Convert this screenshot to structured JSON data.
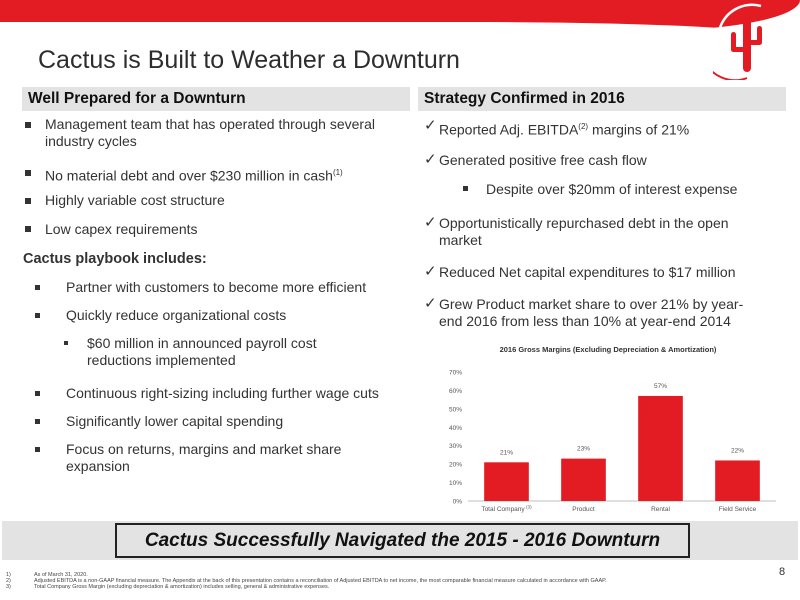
{
  "title": "Cactus is Built to Weather a Downturn",
  "left": {
    "heading": "Well Prepared for a Downturn",
    "bullets": [
      {
        "line1": "Management team that has operated through several",
        "line2": "industry cycles"
      },
      {
        "line1": "No material debt and over $230 million in cash",
        "sup": "(1)"
      },
      {
        "line1": "Highly variable cost structure"
      },
      {
        "line1": "Low capex requirements"
      }
    ],
    "playbook_label": "Cactus playbook includes:",
    "playbook": [
      {
        "line1": "Partner with customers to become more efficient"
      },
      {
        "line1": "Quickly reduce organizational costs"
      },
      {
        "line1": "Continuous right-sizing including further wage cuts"
      },
      {
        "line1": "Significantly lower capital spending"
      },
      {
        "line1": "Focus on returns, margins and market share",
        "line2": "expansion"
      }
    ],
    "sub_bullet": {
      "line1": "$60 million in announced payroll cost",
      "line2": "reductions implemented"
    }
  },
  "right": {
    "heading": "Strategy Confirmed in 2016",
    "items": [
      {
        "pre": "Reported Adj. EBITDA",
        "sup": "(2)",
        "post": " margins of 21%"
      },
      {
        "line1": "Generated positive free cash flow"
      },
      {
        "line1": "Opportunistically repurchased debt in the open",
        "line2": "market"
      },
      {
        "line1": "Reduced Net capital expenditures to $17 million"
      },
      {
        "line1": "Grew Product market share to over 21% by year-",
        "line2": "end 2016 from less than 10% at year-end 2014"
      }
    ],
    "sub_bullet": "Despite over $20mm of interest expense"
  },
  "chart_data": {
    "type": "bar",
    "title": "2016 Gross Margins (Excluding Depreciation & Amortization)",
    "categories": [
      "Total Company",
      "Product",
      "Rental",
      "Field Service"
    ],
    "category_superscripts": [
      "(3)",
      "",
      "",
      ""
    ],
    "values": [
      21,
      23,
      57,
      22
    ],
    "value_labels": [
      "21%",
      "23%",
      "57%",
      "22%"
    ],
    "yticks": [
      "0%",
      "10%",
      "20%",
      "30%",
      "40%",
      "50%",
      "60%",
      "70%"
    ],
    "ylim": [
      0,
      70
    ],
    "bar_color": "#e31b23",
    "grid": false
  },
  "banner": "Cactus Successfully Navigated the 2015 - 2016 Downturn",
  "footnotes": [
    {
      "num": "1)",
      "text": "As of March 31, 2020."
    },
    {
      "num": "2)",
      "text": "Adjusted EBITDA is a non-GAAP financial measure. The Appendix at the back of this presentation contains a reconciliation of Adjusted EBITDA to net income, the most comparable financial measure calculated in accordance with GAAP."
    },
    {
      "num": "3)",
      "text": "Total Company Gross Margin (excluding depreciation & amortization) includes selling, general & administrative expenses."
    }
  ],
  "page_number": "8",
  "colors": {
    "accent": "#e31b23",
    "header_bg": "#e3e3e3",
    "text": "#333333"
  }
}
